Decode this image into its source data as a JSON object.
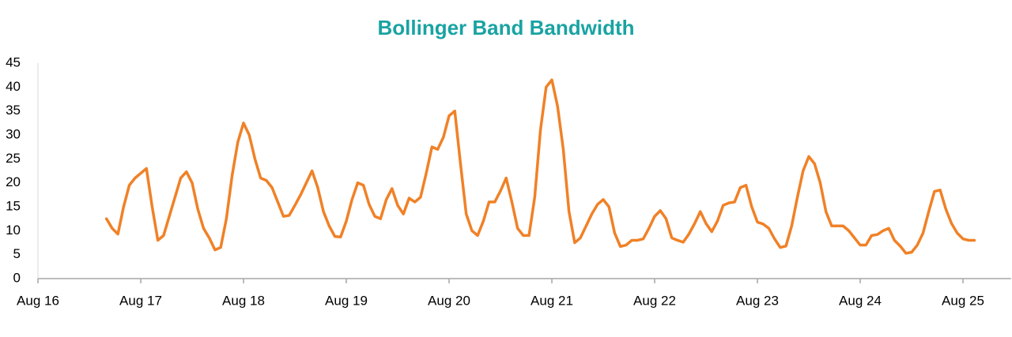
{
  "chart_data": {
    "type": "line",
    "title": "Bollinger Band Bandwidth",
    "categories": [
      "Aug 16",
      null,
      null,
      null,
      null,
      null,
      null,
      null,
      null,
      null,
      null,
      null,
      null,
      null,
      null,
      null,
      null,
      null,
      "Aug 17",
      null,
      null,
      null,
      null,
      null,
      null,
      null,
      null,
      null,
      null,
      null,
      null,
      null,
      null,
      null,
      null,
      null,
      "Aug 18",
      null,
      null,
      null,
      null,
      null,
      null,
      null,
      null,
      null,
      null,
      null,
      null,
      null,
      null,
      null,
      null,
      null,
      "Aug 19",
      null,
      null,
      null,
      null,
      null,
      null,
      null,
      null,
      null,
      null,
      null,
      null,
      null,
      null,
      null,
      null,
      null,
      "Aug 20",
      null,
      null,
      null,
      null,
      null,
      null,
      null,
      null,
      null,
      null,
      null,
      null,
      null,
      null,
      null,
      null,
      null,
      "Aug 21",
      null,
      null,
      null,
      null,
      null,
      null,
      null,
      null,
      null,
      null,
      null,
      null,
      null,
      null,
      null,
      null,
      null,
      "Aug 22",
      null,
      null,
      null,
      null,
      null,
      null,
      null,
      null,
      null,
      null,
      null,
      null,
      null,
      null,
      null,
      null,
      null,
      "Aug 23",
      null,
      null,
      null,
      null,
      null,
      null,
      null,
      null,
      null,
      null,
      null,
      null,
      null,
      null,
      null,
      null,
      null,
      "Aug 24",
      null,
      null,
      null,
      null,
      null,
      null,
      null,
      null,
      null,
      null,
      null,
      null,
      null,
      null,
      null,
      null,
      null,
      "Aug 25",
      null,
      null,
      null,
      null,
      null,
      null,
      null,
      null
    ],
    "values": [
      null,
      null,
      null,
      null,
      null,
      null,
      null,
      null,
      null,
      null,
      null,
      null,
      12.5,
      10.5,
      9.3,
      15,
      19.5,
      21,
      22,
      23,
      15,
      8,
      9,
      13,
      17,
      21,
      22.3,
      20,
      14.5,
      10.5,
      8.5,
      6,
      6.5,
      12.5,
      21.5,
      28.5,
      32.5,
      30,
      25,
      21,
      20.5,
      19,
      16,
      13,
      13.2,
      15.3,
      17.5,
      20,
      22.5,
      19,
      14,
      11,
      8.8,
      8.7,
      12,
      16.5,
      20,
      19.5,
      15.5,
      13,
      12.5,
      16.5,
      18.8,
      15.3,
      13.5,
      16.8,
      16,
      17,
      22,
      27.5,
      27,
      29.5,
      34,
      35,
      24,
      13.5,
      10,
      9,
      12,
      16,
      16,
      18.3,
      21,
      16,
      10.5,
      9,
      9,
      17,
      31,
      40,
      41.5,
      36,
      27,
      14,
      7.5,
      8.5,
      11,
      13.5,
      15.5,
      16.5,
      15,
      9.5,
      6.7,
      7,
      8,
      8,
      8.3,
      10.5,
      13,
      14.2,
      12.5,
      8.5,
      8,
      7.6,
      9.3,
      11.5,
      14,
      11.5,
      9.8,
      12,
      15.3,
      15.8,
      16,
      19,
      19.5,
      15,
      11.8,
      11.4,
      10.5,
      8.3,
      6.5,
      6.8,
      11,
      17,
      22.5,
      25.5,
      24,
      20,
      14,
      11,
      11,
      11,
      10,
      8.5,
      7,
      7,
      9,
      9.2,
      10,
      10.5,
      8,
      6.8,
      5.3,
      5.5,
      7,
      9.5,
      14,
      18.2,
      18.5,
      14.5,
      11.5,
      9.5,
      8.3,
      8,
      8,
      null,
      null,
      null,
      null,
      null,
      null
    ],
    "color": "#f08127",
    "ylim": [
      0,
      45
    ],
    "yticks": [
      0,
      5,
      10,
      15,
      20,
      25,
      30,
      35,
      40,
      45
    ],
    "grid": false
  }
}
